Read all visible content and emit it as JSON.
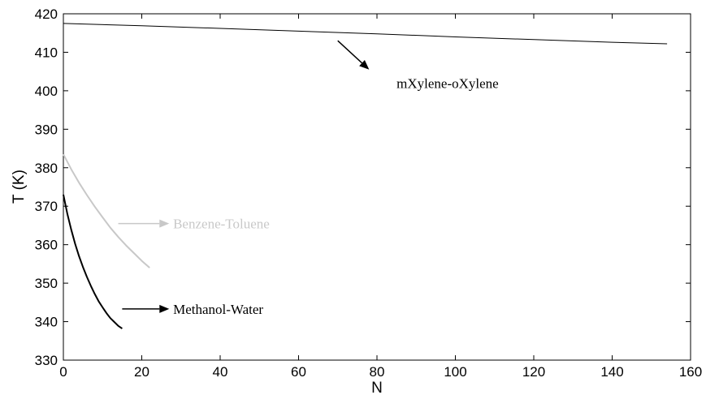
{
  "chart_data": {
    "type": "line",
    "title": "",
    "xlabel": "N",
    "ylabel": "T (K)",
    "xlim": [
      0,
      160
    ],
    "ylim": [
      330,
      420
    ],
    "xticks": [
      0,
      20,
      40,
      60,
      80,
      100,
      120,
      140,
      160
    ],
    "yticks": [
      330,
      340,
      350,
      360,
      370,
      380,
      390,
      400,
      410,
      420
    ],
    "grid": false,
    "series": [
      {
        "name": "mXylene-oXylene",
        "color": "#000000",
        "x": [
          0,
          20,
          40,
          60,
          80,
          100,
          120,
          140,
          154
        ],
        "y": [
          417.5,
          416.9,
          416.2,
          415.5,
          414.8,
          414.0,
          413.3,
          412.6,
          412.2
        ]
      },
      {
        "name": "Benzene-Toluene",
        "color": "#c8c8c8",
        "x": [
          0,
          2,
          4,
          6,
          8,
          10,
          12,
          14,
          16,
          18,
          20,
          22
        ],
        "y": [
          383.5,
          379.6,
          376.1,
          372.9,
          369.9,
          367.1,
          364.4,
          362.0,
          359.8,
          357.8,
          355.8,
          354.0
        ]
      },
      {
        "name": "Methanol-Water",
        "color": "#000000",
        "x": [
          0,
          1,
          2,
          3,
          4,
          5,
          6,
          7,
          8,
          9,
          10,
          11,
          12,
          13,
          14,
          15
        ],
        "y": [
          373.0,
          368.1,
          363.9,
          360.2,
          357.0,
          354.2,
          351.6,
          349.3,
          347.2,
          345.3,
          343.7,
          342.2,
          340.9,
          339.9,
          338.9,
          338.2
        ]
      }
    ],
    "annotations": [
      {
        "text": "mXylene-oXylene",
        "color": "#000000",
        "arrow_from": [
          70,
          413
        ],
        "arrow_to": [
          78,
          405.5
        ],
        "text_at": [
          85,
          402
        ]
      },
      {
        "text": "Benzene-Toluene",
        "color": "#c8c8c8",
        "arrow_from": [
          14,
          365.5
        ],
        "arrow_to": [
          27,
          365.5
        ],
        "text_at": [
          28,
          365.5
        ]
      },
      {
        "text": "Methanol-Water",
        "color": "#000000",
        "arrow_from": [
          15,
          343.3
        ],
        "arrow_to": [
          27,
          343.3
        ],
        "text_at": [
          28,
          343.3
        ]
      }
    ]
  }
}
